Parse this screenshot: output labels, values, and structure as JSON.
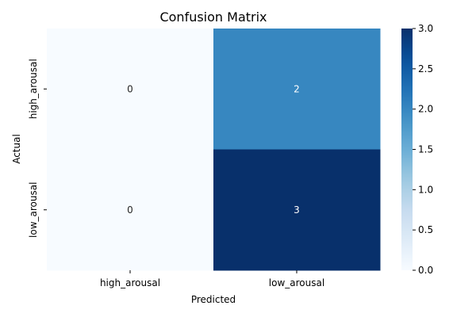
{
  "chart_data": {
    "type": "heatmap",
    "title": "Confusion Matrix",
    "xlabel": "Predicted",
    "ylabel": "Actual",
    "x_categories": [
      "high_arousal",
      "low_arousal"
    ],
    "y_categories": [
      "high_arousal",
      "low_arousal"
    ],
    "values": [
      [
        0,
        2
      ],
      [
        0,
        3
      ]
    ],
    "colorbar": {
      "range": [
        0,
        3
      ],
      "ticks": [
        "0.0",
        "0.5",
        "1.0",
        "1.5",
        "2.0",
        "2.5",
        "3.0"
      ],
      "colormap": "Blues",
      "low_color": "#f7fbff",
      "high_color": "#08306b"
    },
    "annotations": true,
    "grid": false,
    "legend": "colorbar-right"
  }
}
